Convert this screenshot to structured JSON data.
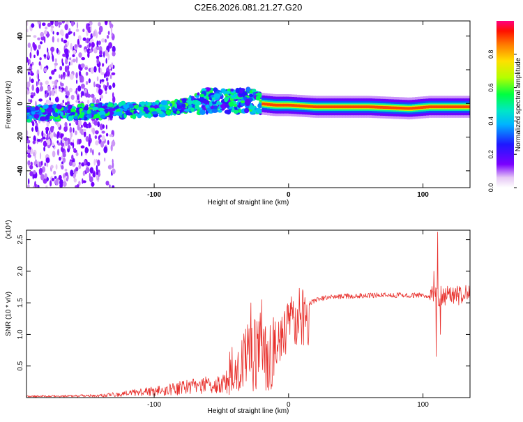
{
  "title": "C2E6.2026.081.21.27.G20",
  "colors": {
    "snr_line": "#e8302c",
    "axis": "#000000",
    "background": "#ffffff"
  },
  "chart_data": [
    {
      "type": "heatmap",
      "id": "spectrogram",
      "xlabel": "Height of straight line (km)",
      "ylabel": "Frequency (Hz)",
      "xlim": [
        -195,
        135
      ],
      "ylim": [
        -50,
        49
      ],
      "x_ticks": [
        -100,
        0,
        100
      ],
      "y_ticks": [
        40,
        20,
        0,
        -20,
        -40
      ],
      "colorbar": {
        "label": "Normalized spectral amplitude",
        "range": [
          0,
          1
        ],
        "ticks": [
          0.0,
          0.2,
          0.4,
          0.6,
          0.8
        ],
        "tick_labels": [
          "0.0",
          "0.2",
          "0.4",
          "0.6",
          "0.8"
        ]
      },
      "ridge": {
        "description_points_km_hz": [
          [
            -195,
            -6
          ],
          [
            -150,
            -5
          ],
          [
            -120,
            -4
          ],
          [
            -90,
            -3
          ],
          [
            -70,
            0
          ],
          [
            -60,
            2
          ],
          [
            -45,
            1
          ],
          [
            -30,
            2
          ],
          [
            -22,
            0
          ],
          [
            -10,
            -1
          ],
          [
            0,
            -1
          ],
          [
            20,
            -2
          ],
          [
            60,
            -2
          ],
          [
            90,
            -3
          ],
          [
            105,
            -2
          ],
          [
            135,
            -2
          ]
        ],
        "peak_amplitude_range_km": [
          -20,
          135
        ]
      }
    },
    {
      "type": "line",
      "id": "snr",
      "xlabel": "Height of straight line (km)",
      "ylabel": "SNR (10 * v/v)",
      "scale_label": "(x10⁴)",
      "xlim": [
        -195,
        135
      ],
      "ylim": [
        0,
        2.65
      ],
      "x_ticks": [
        -100,
        0,
        100
      ],
      "y_ticks": [
        0.5,
        1.0,
        1.5,
        2.0,
        2.5
      ],
      "y_tick_labels": [
        "0.5",
        "1.0",
        "1.5",
        "2.0",
        "2.5"
      ],
      "envelope_km_value": [
        [
          -195,
          0.03
        ],
        [
          -140,
          0.05
        ],
        [
          -125,
          0.1
        ],
        [
          -110,
          0.15
        ],
        [
          -90,
          0.2
        ],
        [
          -70,
          0.3
        ],
        [
          -50,
          0.35
        ],
        [
          -40,
          0.5
        ],
        [
          -30,
          0.7
        ],
        [
          -20,
          0.8
        ],
        [
          -15,
          0.6
        ],
        [
          -10,
          0.9
        ],
        [
          -5,
          1.1
        ],
        [
          0,
          1.3
        ],
        [
          10,
          1.45
        ],
        [
          20,
          1.55
        ],
        [
          30,
          1.6
        ],
        [
          50,
          1.62
        ],
        [
          70,
          1.63
        ],
        [
          95,
          1.63
        ],
        [
          105,
          1.62
        ],
        [
          110,
          1.6
        ],
        [
          120,
          1.62
        ],
        [
          135,
          1.62
        ]
      ],
      "spikes_km_value": [
        [
          -28,
          1.5
        ],
        [
          -20,
          1.55
        ],
        [
          -10,
          1.2
        ],
        [
          8,
          1.73
        ],
        [
          108,
          2.0
        ],
        [
          110,
          0.65
        ],
        [
          111,
          2.62
        ],
        [
          113,
          1.0
        ]
      ]
    }
  ]
}
